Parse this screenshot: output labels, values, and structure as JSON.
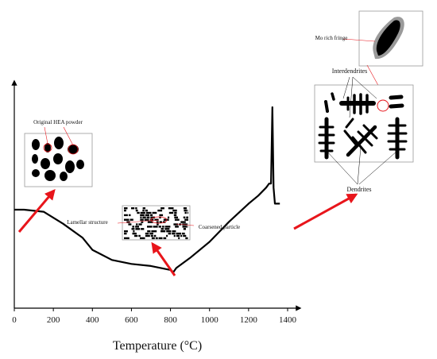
{
  "chart_data": {
    "type": "line",
    "xlabel": "Temperature (°C)",
    "ylabel": "",
    "xlim": [
      0,
      1400
    ],
    "x_ticks": [
      0,
      200,
      400,
      600,
      800,
      1000,
      1200,
      1400
    ],
    "grid": false,
    "series": [
      {
        "x": [
          0,
          50,
          150,
          250,
          350,
          400,
          500,
          600,
          700,
          800,
          815,
          830,
          900,
          1000,
          1100,
          1200,
          1250,
          1290,
          1305,
          1315,
          1322,
          1328,
          1335,
          1340,
          1360
        ],
        "y": [
          0.49,
          0.49,
          0.48,
          0.42,
          0.35,
          0.29,
          0.24,
          0.22,
          0.21,
          0.19,
          0.18,
          0.2,
          0.25,
          0.33,
          0.43,
          0.52,
          0.56,
          0.6,
          0.62,
          0.62,
          1.0,
          0.6,
          0.52,
          0.52,
          0.52
        ]
      }
    ],
    "annotations": {
      "original_powder": "Original HEA powder",
      "lamellar": "Lamellar structure",
      "coarsened": "Coarsened particle",
      "mo_fringe": "Mo rich fringe",
      "interdendrites": "Interdendrites",
      "dendrites": "Dendrites"
    },
    "colors": {
      "curve": "#000000",
      "arrow": "#e8151b",
      "fringe": "#8a8a8a"
    }
  }
}
